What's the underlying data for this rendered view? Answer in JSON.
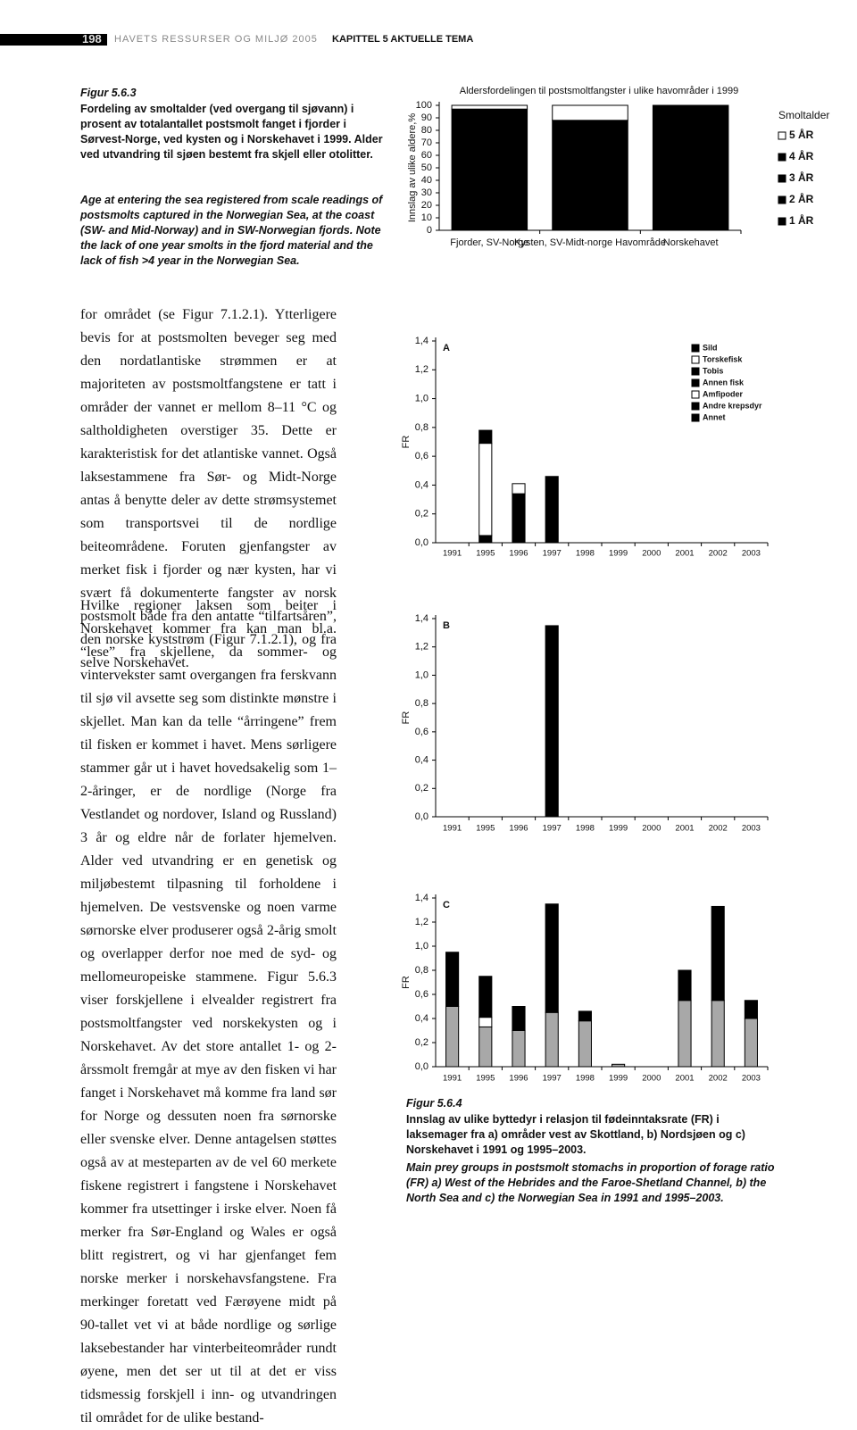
{
  "header": {
    "page": "198",
    "running": "HAVETS RESSURSER OG MILJØ 2005",
    "chapter": "KAPITTEL 5 AKTUELLE TEMA"
  },
  "figure_563": {
    "label": "Figur 5.6.3",
    "caption_no": "Fordeling av smoltalder (ved overgang til sjøvann) i prosent av totalantallet postsmolt fanget i fjorder i Sørvest-Norge, ved kysten og i Norskehavet i 1999. Alder ved utvandring til sjøen bestemt fra skjell eller otolitter.",
    "caption_en": "Age at entering the sea registered from scale readings of postsmolts captured in the Norwegian Sea, at the coast (SW- and Mid-Norway) and in SW-Norwegian fjords. Note the lack of one year smolts in the fjord material and the lack of fish >4 year in the Norwegian Sea."
  },
  "figure_564": {
    "label": "Figur 5.6.4",
    "caption_no": "Innslag av ulike byttedyr i relasjon til fødeinntaksrate (FR) i laksemager fra a) områder vest av Skottland, b) Nordsjøen og c) Norskehavet i 1991 og 1995–2003.",
    "caption_en": "Main prey groups in postsmolt stomachs in proportion of forage ratio (FR) a) West of the Hebrides and the Faroe-Shetland Channel, b) the North Sea and c) the Norwegian Sea in 1991 and 1995–2003."
  },
  "body": {
    "paragraphs": [
      "for området (se Figur 7.1.2.1). Ytterligere bevis for at postsmolten beveger seg med den nordatlantiske strømmen er at majoriteten av postsmoltfangstene er tatt i områder der vannet er mellom 8–11 °C og saltholdigheten overstiger 35. Dette er karakteristisk for det atlantiske vannet. Også laksestammene fra Sør- og Midt-Norge antas å benytte deler av dette strømsystemet som transportsvei til de nordlige beiteområdene. Foruten gjenfangster av merket fisk i fjorder og nær kysten, har vi svært få dokumenterte fangster av norsk postsmolt både fra den antatte “tilfartsåren”, den norske kyststrøm (Figur 7.1.2.1), og fra selve Norskehavet.",
      "Hvilke regioner laksen som beiter i Norskehavet kommer fra kan man bl.a. “lese” fra skjellene, da sommer- og vintervekster samt overgangen fra ferskvann til sjø vil avsette seg som distinkte mønstre i skjellet. Man kan da telle “årringene” frem til fisken er kommet i havet. Mens sørligere stammer går ut i havet hovedsakelig som 1–2-åringer, er de nordlige (Norge fra Vestlandet og nordover, Island og Russland) 3 år og eldre når de forlater hjemelven. Alder ved utvandring er en genetisk og miljøbestemt tilpasning til forholdene i hjemelven. De vestsvenske og noen varme sørnorske elver produserer også 2-årig smolt og overlapper derfor noe med de syd- og mellomeuropeiske stammene. Figur 5.6.3 viser forskjellene i elvealder registrert fra postsmoltfangster ved norskekysten og i Norskehavet. Av det store antallet 1- og 2-årssmolt fremgår at mye av den fisken vi har fanget i Norskehavet må komme fra land sør for Norge og dessuten noen fra sørnorske eller svenske elver. Denne antagelsen støttes også av at mesteparten av de vel 60 merkete fiskene registrert i fangstene i Norskehavet kommer fra utsettinger i irske elver. Noen få merker fra Sør-England og Wales er også blitt registrert, og vi har gjenfanget fem norske merker i norskehavsfangstene. Fra merkinger foretatt ved Færøyene midt på 90-tallet vet vi at både nordlige og sørlige laksebestander har vinterbeiteområder rundt øyene, men det ser ut til at det er viss tidsmessig forskjell i inn- og utvandringen til området for de ulike bestand-"
    ]
  },
  "chart_data": [
    {
      "type": "bar",
      "stacked": true,
      "title": "Aldersfordelingen til postsmoltfangster i ulike havområder i 1999",
      "ylabel": "Innslag av ulike aldere,%",
      "legend_title": "Smoltalder",
      "categories": [
        "Fjorder, SV-Norge",
        "Kysten, SV-Midt-norge Havområde",
        "Norskehavet"
      ],
      "series": [
        {
          "name": "1 ÅR",
          "color": "#000000",
          "values": [
            0,
            0,
            0
          ]
        },
        {
          "name": "2 ÅR",
          "color": "#000000",
          "values": [
            97,
            88,
            100
          ]
        },
        {
          "name": "3 ÅR",
          "color": "#000000",
          "values": [
            0,
            0,
            0
          ]
        },
        {
          "name": "4 ÅR",
          "color": "#000000",
          "values": [
            0,
            0,
            0
          ]
        },
        {
          "name": "5 ÅR",
          "color": "#ffffff",
          "values": [
            3,
            12,
            0
          ]
        }
      ],
      "ylim": [
        0,
        100
      ],
      "yticks": [
        0,
        10,
        20,
        30,
        40,
        50,
        60,
        70,
        80,
        90,
        100
      ]
    },
    {
      "type": "bar",
      "stacked": true,
      "panel": "A",
      "ylabel": "FR",
      "categories": [
        "1991",
        "1995",
        "1996",
        "1997",
        "1998",
        "1999",
        "2000",
        "2001",
        "2002",
        "2003"
      ],
      "series": [
        {
          "name": "Sild",
          "color": "#000000",
          "values": [
            null,
            0.05,
            0.34,
            0.46,
            null,
            null,
            null,
            null,
            null,
            null
          ]
        },
        {
          "name": "Torskefisk",
          "color": "#ffffff",
          "values": [
            null,
            0.64,
            0.07,
            0,
            null,
            null,
            null,
            null,
            null,
            null
          ]
        },
        {
          "name": "Tobis",
          "color": "#000000",
          "values": [
            null,
            0.09,
            0,
            0,
            null,
            null,
            null,
            null,
            null,
            null
          ]
        },
        {
          "name": "Annen fisk",
          "color": "#000000",
          "values": [
            null,
            0,
            0,
            0,
            null,
            null,
            null,
            null,
            null,
            null
          ]
        },
        {
          "name": "Amfipoder",
          "color": "#ffffff",
          "values": [
            null,
            0,
            0,
            0,
            null,
            null,
            null,
            null,
            null,
            null
          ]
        },
        {
          "name": "Andre krepsdyr",
          "color": "#000000",
          "values": [
            null,
            0,
            0,
            0,
            null,
            null,
            null,
            null,
            null,
            null
          ]
        },
        {
          "name": "Annet",
          "color": "#000000",
          "values": [
            null,
            0,
            0,
            0,
            null,
            null,
            null,
            null,
            null,
            null
          ]
        }
      ],
      "ylim": [
        0,
        1.4
      ],
      "yticks": [
        {
          "value": 0,
          "label": "0,0"
        },
        {
          "value": 0.2,
          "label": "0,2"
        },
        {
          "value": 0.4,
          "label": "0,4"
        },
        {
          "value": 0.6,
          "label": "0,6"
        },
        {
          "value": 0.8,
          "label": "0,8"
        },
        {
          "value": 1,
          "label": "1,0"
        },
        {
          "value": 1.2,
          "label": "1,2"
        },
        {
          "value": 1.4,
          "label": "1,4"
        }
      ]
    },
    {
      "type": "bar",
      "stacked": true,
      "panel": "B",
      "ylabel": "FR",
      "categories": [
        "1991",
        "1995",
        "1996",
        "1997",
        "1998",
        "1999",
        "2000",
        "2001",
        "2002",
        "2003"
      ],
      "series": [
        {
          "color": "#000000",
          "values": [
            null,
            null,
            null,
            1.35,
            null,
            null,
            null,
            null,
            null,
            null
          ]
        }
      ],
      "ylim": [
        0,
        1.4
      ],
      "yticks": [
        {
          "value": 0,
          "label": "0,0"
        },
        {
          "value": 0.2,
          "label": "0,2"
        },
        {
          "value": 0.4,
          "label": "0,4"
        },
        {
          "value": 0.6,
          "label": "0,6"
        },
        {
          "value": 0.8,
          "label": "0,8"
        },
        {
          "value": 1,
          "label": "1,0"
        },
        {
          "value": 1.2,
          "label": "1,2"
        },
        {
          "value": 1.4,
          "label": "1,4"
        }
      ]
    },
    {
      "type": "bar",
      "stacked": true,
      "panel": "C",
      "ylabel": "FR",
      "categories": [
        "1991",
        "1995",
        "1996",
        "1997",
        "1998",
        "1999",
        "2000",
        "2001",
        "2002",
        "2003"
      ],
      "series": [
        {
          "color": "#a8a8a8",
          "values": [
            0.5,
            0.33,
            0.3,
            0.45,
            0.38,
            0.02,
            0,
            0.55,
            0.55,
            0.4
          ]
        },
        {
          "color": "#ffffff",
          "values": [
            0,
            0.08,
            0,
            0,
            0,
            0,
            0,
            0,
            0,
            0
          ]
        },
        {
          "color": "#000000",
          "values": [
            0.45,
            0.34,
            0.2,
            0.9,
            0.08,
            0,
            0,
            0.25,
            0.78,
            0.15
          ]
        }
      ],
      "ylim": [
        0,
        1.4
      ],
      "yticks": [
        {
          "value": 0,
          "label": "0,0"
        },
        {
          "value": 0.2,
          "label": "0,2"
        },
        {
          "value": 0.4,
          "label": "0,4"
        },
        {
          "value": 0.6,
          "label": "0,6"
        },
        {
          "value": 0.8,
          "label": "0,8"
        },
        {
          "value": 1,
          "label": "1,0"
        },
        {
          "value": 1.2,
          "label": "1,2"
        },
        {
          "value": 1.4,
          "label": "1,4"
        }
      ]
    }
  ]
}
